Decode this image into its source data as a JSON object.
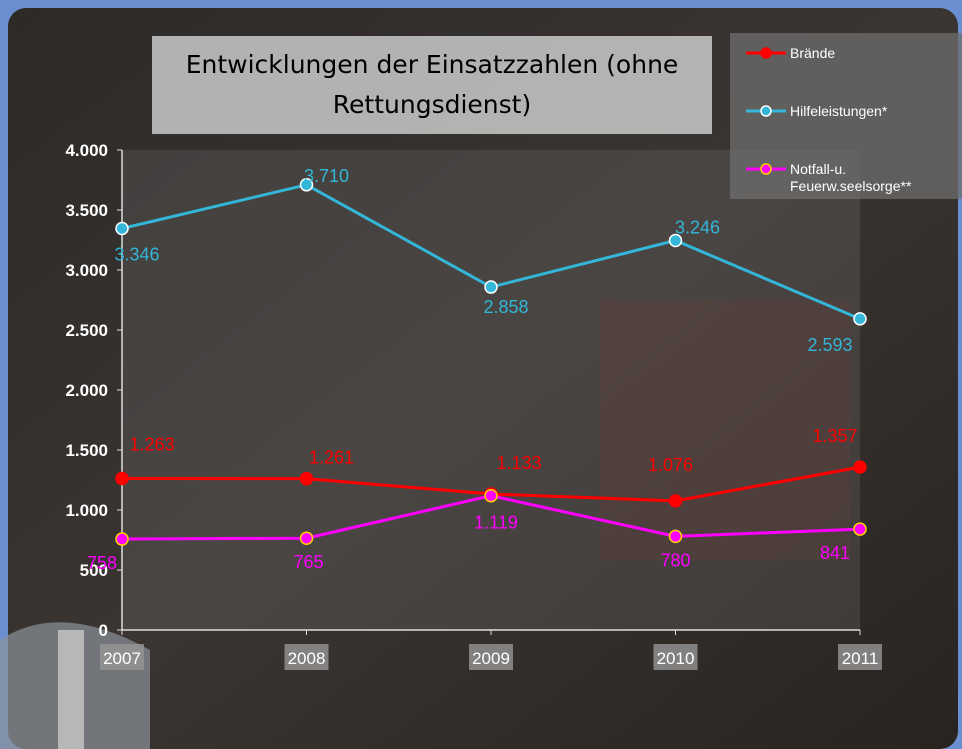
{
  "chart_data": {
    "type": "line",
    "title": "Entwicklungen der Einsatzzahlen (ohne Rettungsdienst)",
    "categories": [
      "2007",
      "2008",
      "2009",
      "2010",
      "2011"
    ],
    "series": [
      {
        "name": "Brände",
        "color": "#ff0000",
        "values": [
          1263,
          1261,
          1133,
          1076,
          1357
        ],
        "value_labels": [
          "1.263",
          "1.261",
          "1.133",
          "1.076",
          "1.357"
        ]
      },
      {
        "name": "Hilfeleistungen*",
        "color": "#33b6d8",
        "values": [
          3346,
          3710,
          2858,
          3246,
          2593
        ],
        "value_labels": [
          "3.346",
          "3.710",
          "2.858",
          "3.246",
          "2.593"
        ]
      },
      {
        "name": "Notfall-u. Feuerw.seelsorge**",
        "color": "#ff00ff",
        "values": [
          758,
          765,
          1119,
          780,
          841
        ],
        "value_labels": [
          "758",
          "765",
          "1.119",
          "780",
          "841"
        ]
      }
    ],
    "ylim": [
      0,
      4000
    ],
    "yticks": [
      0,
      500,
      {
        "value": 1000,
        "label": "1.000"
      },
      {
        "value": 1500,
        "label": "1.500"
      },
      {
        "value": 2000,
        "label": "2.000"
      },
      {
        "value": 2500,
        "label": "2.500"
      },
      {
        "value": 3000,
        "label": "3.000"
      },
      {
        "value": 3500,
        "label": "3.500"
      },
      {
        "value": 4000,
        "label": "4.000"
      }
    ]
  }
}
